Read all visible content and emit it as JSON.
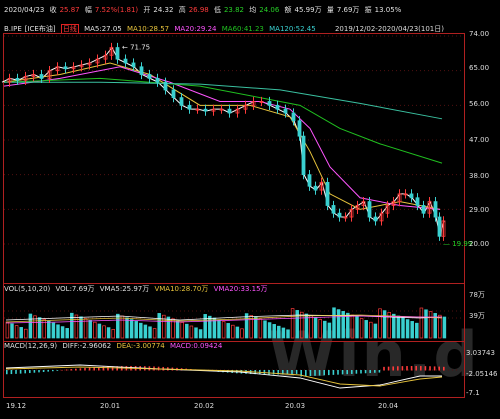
{
  "topbar": {
    "date": "2020/04/23",
    "close_label": "收",
    "close_value": "25.87",
    "change_label": "幅",
    "change_value": "7.52%(1.81)",
    "open_label": "开",
    "open_value": "24.32",
    "high_label": "高",
    "high_value": "26.98",
    "low_label": "低",
    "low_value": "23.82",
    "avg_label": "均",
    "avg_value": "24.06",
    "amount_label": "额",
    "amount_value": "45.99万",
    "volume_label": "量",
    "volume_value": "7.69万",
    "turnover_label": "振",
    "turnover_value": "13.05%"
  },
  "price_panel": {
    "symbol": "B.IPE",
    "name": "[ICE布油]",
    "period_badge": "日线",
    "ma5": "MA5:27.05",
    "ma10": "MA10:28.57",
    "ma20": "MA20:29.24",
    "ma60": "MA60:41.23",
    "ma120": "MA120:52.45",
    "range": "2019/12/02-2020/04/23(101日)",
    "high_mark": "71.75",
    "low_mark": "19.99",
    "y_ticks": [
      "74.00",
      "65.00",
      "56.00",
      "47.00",
      "38.00",
      "29.00",
      "20.00"
    ]
  },
  "volume_panel": {
    "title": "VOL(5,10,20)",
    "vol": "VOL:7.69万",
    "vma5": "VMA5:25.97万",
    "vma10": "VMA10:28.70万",
    "vma20": "VMA20:33.15万",
    "y_ticks": [
      "78万",
      "39万"
    ]
  },
  "macd_panel": {
    "title": "MACD(12,26,9)",
    "diff": "DIFF:-2.96062",
    "dea": "DEA:-3.00774",
    "macd": "MACD:0.09424",
    "y_ticks": [
      "3.03743",
      "-2.05146",
      "-7.1"
    ]
  },
  "dates": [
    "19.12",
    "20.01",
    "20.02",
    "20.03",
    "20.04"
  ],
  "watermark": "Win.d",
  "colors": {
    "up": "#ff3b3b",
    "down": "#3ad0d0",
    "ma5": "#ffffff",
    "ma10": "#e8c43c",
    "ma20": "#ff55ff",
    "ma60": "#20c020",
    "ma120": "#3ac0a0"
  }
}
